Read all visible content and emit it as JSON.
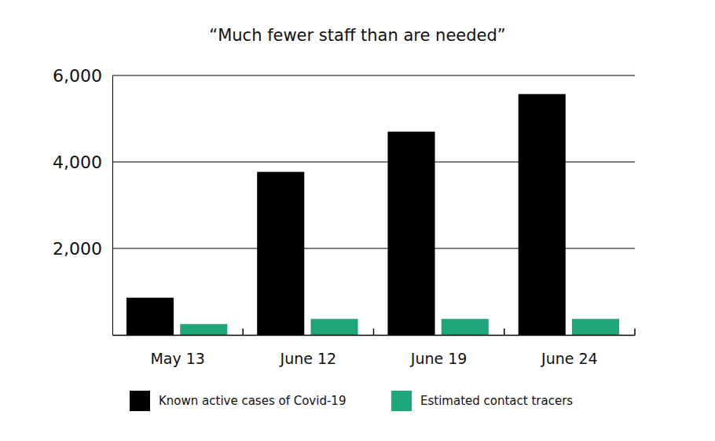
{
  "chart_data": {
    "type": "bar",
    "title": "“Much fewer staff than are needed”",
    "categories": [
      "May 13",
      "June 12",
      "June 19",
      "June 24"
    ],
    "series": [
      {
        "name": "Known active cases of Covid-19",
        "color": "#000000",
        "values": [
          860,
          3770,
          4700,
          5570
        ]
      },
      {
        "name": "Estimated contact tracers",
        "color": "#1fa67b",
        "values": [
          250,
          370,
          370,
          370
        ]
      }
    ],
    "ylim": [
      0,
      6000
    ],
    "yticks": [
      {
        "value": 2000,
        "label": "2,000"
      },
      {
        "value": 4000,
        "label": "4,000"
      },
      {
        "value": 6000,
        "label": "6,000"
      }
    ],
    "grid": true,
    "legend": "bottom"
  }
}
